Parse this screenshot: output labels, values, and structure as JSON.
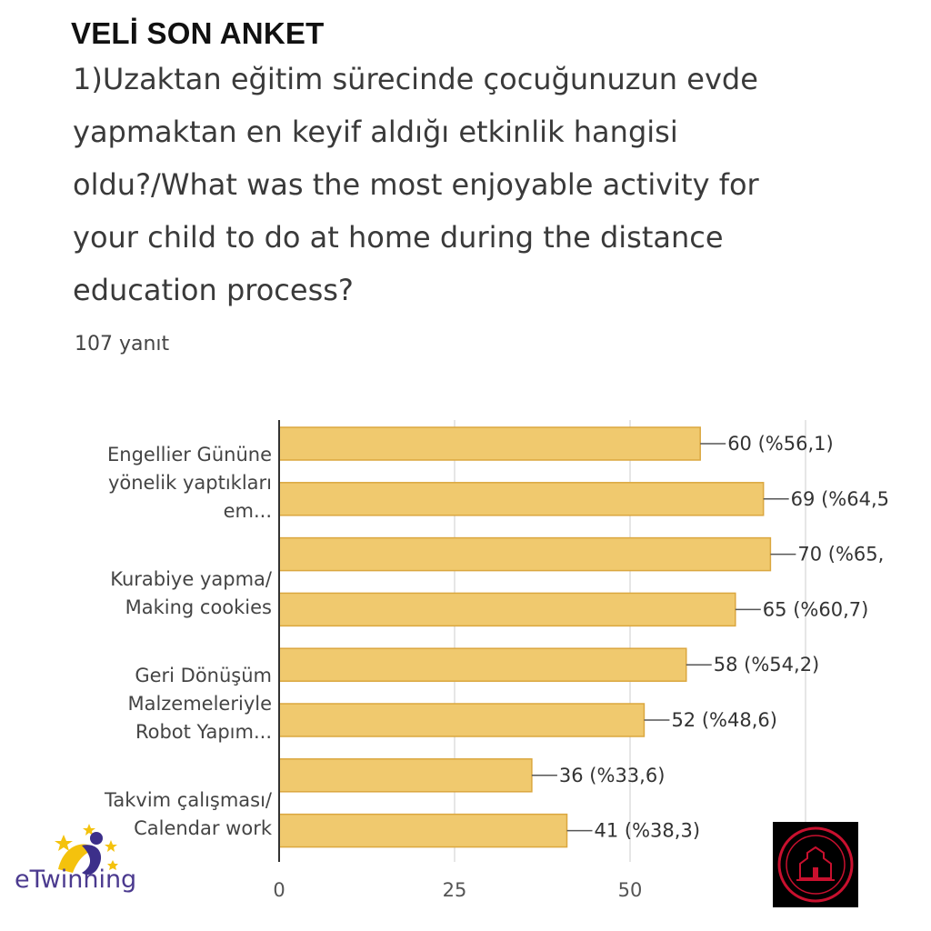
{
  "header": {
    "heading": "VELİ SON ANKET",
    "question": "1)Uzaktan eğitim sürecinde çocuğunuzun evde yapmaktan en keyif aldığı etkinlik hangisi oldu?/What was the most enjoyable activity for your child to do at home during the distance education process?",
    "responses": "107 yanıt"
  },
  "logos": {
    "etwinning_text": "eTwinning",
    "etwinning_colors": [
      "#f4c20d",
      "#4b3a8f"
    ],
    "ministry_emblem": "ministry-seal-icon"
  },
  "chart_data": {
    "type": "bar",
    "orientation": "horizontal",
    "colors": {
      "bar": "#f0c96e",
      "bar_border": "#dba73f",
      "axis": "#333333",
      "grid": "#dddddd"
    },
    "category_labels": [
      {
        "row": 0,
        "lines": [
          "Engellier Gününe",
          "yönelik yaptıkları",
          "em..."
        ]
      },
      {
        "row": 2,
        "lines": [
          "Kurabiye yapma/",
          "Making cookies"
        ]
      },
      {
        "row": 4,
        "lines": [
          "Geri Dönüşüm",
          "Malzemeleriyle",
          "Robot Yapım..."
        ]
      },
      {
        "row": 6,
        "lines": [
          "Takvim çalışması/",
          "Calendar work"
        ]
      }
    ],
    "values": [
      60,
      69,
      70,
      65,
      58,
      52,
      36,
      41
    ],
    "value_labels": [
      "60 (%56,1)",
      "69 (%64,5",
      "70 (%65,",
      "65 (%60,7)",
      "58 (%54,2)",
      "52 (%48,6)",
      "36 (%33,6)",
      "41 (%38,3)"
    ],
    "x_ticks": [
      0,
      25,
      50
    ],
    "xlim": [
      0,
      75
    ],
    "grid": true
  }
}
